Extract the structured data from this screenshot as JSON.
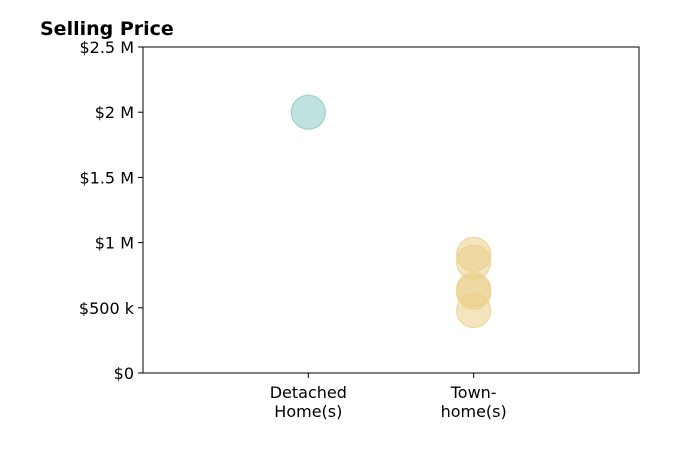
{
  "chart_data": {
    "type": "scatter",
    "title": "Selling Price",
    "xlabel": "",
    "ylabel": "",
    "categories": [
      [
        "Detached",
        "Home(s)"
      ],
      [
        "Town-",
        "home(s)"
      ]
    ],
    "ylim": [
      0,
      2500000
    ],
    "yticks": [
      {
        "value": 0,
        "label": "$0"
      },
      {
        "value": 500000,
        "label": "$500 k"
      },
      {
        "value": 1000000,
        "label": "$1 M"
      },
      {
        "value": 1500000,
        "label": "$1.5 M"
      },
      {
        "value": 2000000,
        "label": "$2 M"
      },
      {
        "value": 2500000,
        "label": "$2.5 M"
      }
    ],
    "xlim": [
      -1,
      2
    ],
    "grid": false,
    "legend": "none",
    "series": [
      {
        "category": 0,
        "color": "#8dcbc4",
        "values": [
          2000000
        ]
      },
      {
        "category": 1,
        "color": "#ebcf8a",
        "values": [
          480000,
          620000,
          640000,
          850000,
          910000
        ]
      }
    ]
  }
}
